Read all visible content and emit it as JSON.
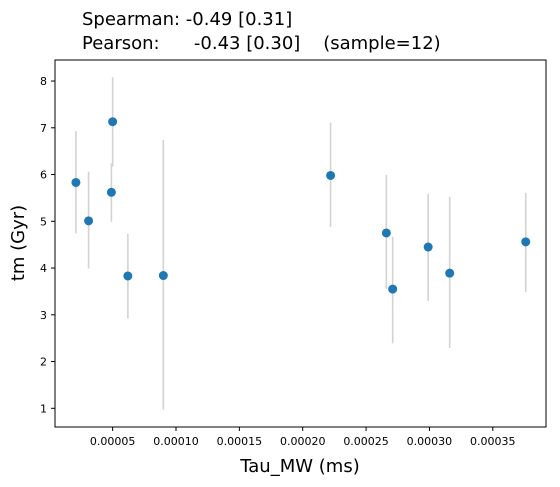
{
  "chart_data": {
    "type": "scatter",
    "title_lines": [
      "Spearman: -0.49 [0.31]",
      "Pearson:      -0.43 [0.30]    (sample=12)"
    ],
    "xlabel": "Tau_MW (ms)",
    "ylabel": "tm (Gyr)",
    "xlim": [
      4.5e-06,
      0.000392
    ],
    "ylim": [
      0.6,
      8.45
    ],
    "x_ticks": [
      5e-05,
      0.0001,
      0.00015,
      0.0002,
      0.00025,
      0.0003,
      0.00035
    ],
    "x_tick_labels": [
      "0.00005",
      "0.00010",
      "0.00015",
      "0.00020",
      "0.00025",
      "0.00030",
      "0.00035"
    ],
    "y_ticks": [
      1,
      2,
      3,
      4,
      5,
      6,
      7,
      8
    ],
    "y_tick_labels": [
      "1",
      "2",
      "3",
      "4",
      "5",
      "6",
      "7",
      "8"
    ],
    "grid": false,
    "point_color": "#1f77b4",
    "errorbar_color": "#d3d3d3",
    "points": [
      {
        "x": 2.1e-05,
        "y": 5.83,
        "err_low": 4.74,
        "err_high": 6.93
      },
      {
        "x": 3.1e-05,
        "y": 5.01,
        "err_low": 3.99,
        "err_high": 6.06
      },
      {
        "x": 4.9e-05,
        "y": 5.62,
        "err_low": 4.99,
        "err_high": 6.24
      },
      {
        "x": 5e-05,
        "y": 7.13,
        "err_low": 6.17,
        "err_high": 8.08
      },
      {
        "x": 6.2e-05,
        "y": 3.83,
        "err_low": 2.92,
        "err_high": 4.73
      },
      {
        "x": 9e-05,
        "y": 3.84,
        "err_low": 0.97,
        "err_high": 6.74
      },
      {
        "x": 0.000222,
        "y": 5.98,
        "err_low": 4.88,
        "err_high": 7.11
      },
      {
        "x": 0.000266,
        "y": 4.75,
        "err_low": 3.55,
        "err_high": 5.99
      },
      {
        "x": 0.000271,
        "y": 3.55,
        "err_low": 2.39,
        "err_high": 4.67
      },
      {
        "x": 0.000299,
        "y": 4.45,
        "err_low": 3.3,
        "err_high": 5.59
      },
      {
        "x": 0.000316,
        "y": 3.89,
        "err_low": 2.29,
        "err_high": 5.52
      },
      {
        "x": 0.000376,
        "y": 4.56,
        "err_low": 3.49,
        "err_high": 5.61
      }
    ]
  }
}
